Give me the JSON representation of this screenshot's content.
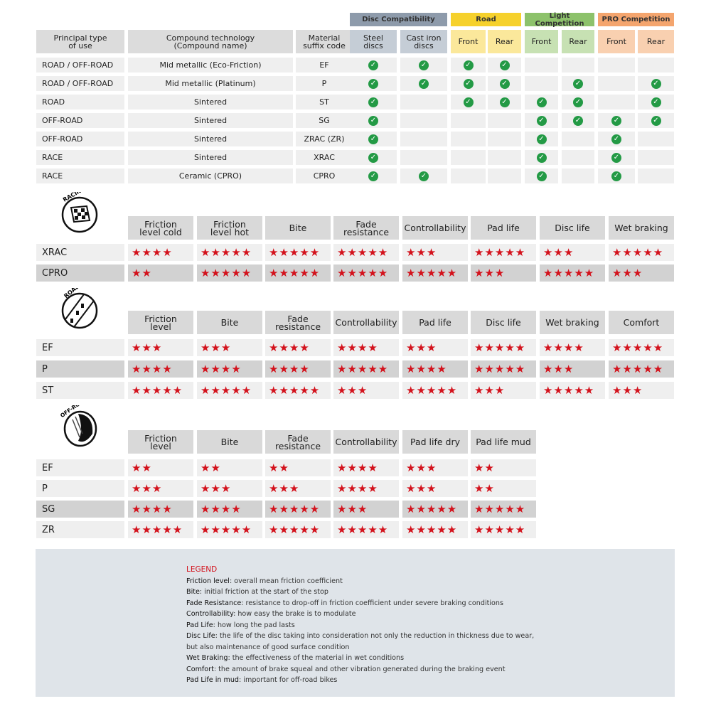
{
  "compat": {
    "groups": [
      {
        "label": "Disc Compatibility",
        "color": "#8e9bab",
        "sub": "#c5cdd6"
      },
      {
        "label": "Road",
        "color": "#f6d12c",
        "sub": "#fbe89b"
      },
      {
        "label": "Light Competition",
        "color": "#8dc26b",
        "sub": "#c7e1b3"
      },
      {
        "label": "PRO Competition",
        "color": "#f4a56e",
        "sub": "#f9d0b0"
      }
    ],
    "headers": [
      "Principal type\nof use",
      "Compound technology\n(Compound name)",
      "Material\nsuffix code",
      "Steel\ndiscs",
      "Cast iron\ndiscs",
      "Front",
      "Rear",
      "Front",
      "Rear",
      "Front",
      "Rear"
    ],
    "rows": [
      {
        "type": "ROAD / OFF-ROAD",
        "compound": "Mid metallic (Eco-Friction)",
        "code": "EF",
        "checks": [
          1,
          1,
          1,
          1,
          0,
          0,
          0,
          0
        ]
      },
      {
        "type": "ROAD / OFF-ROAD",
        "compound": "Mid metallic (Platinum)",
        "code": "P",
        "checks": [
          1,
          1,
          1,
          1,
          0,
          1,
          0,
          1
        ]
      },
      {
        "type": "ROAD",
        "compound": "Sintered",
        "code": "ST",
        "checks": [
          1,
          0,
          1,
          1,
          1,
          1,
          0,
          1
        ]
      },
      {
        "type": "OFF-ROAD",
        "compound": "Sintered",
        "code": "SG",
        "checks": [
          1,
          0,
          0,
          0,
          1,
          1,
          1,
          1
        ]
      },
      {
        "type": "OFF-ROAD",
        "compound": "Sintered",
        "code": "ZRAC (ZR)",
        "checks": [
          1,
          0,
          0,
          0,
          1,
          0,
          1,
          0
        ]
      },
      {
        "type": "RACE",
        "compound": "Sintered",
        "code": "XRAC",
        "checks": [
          1,
          0,
          0,
          0,
          1,
          0,
          1,
          0
        ]
      },
      {
        "type": "RACE",
        "compound": "Ceramic (CPRO)",
        "code": "CPRO",
        "checks": [
          1,
          1,
          0,
          0,
          1,
          0,
          1,
          0
        ]
      }
    ],
    "check_icon": "check-circle-icon",
    "check_color": "#239a45"
  },
  "ratings": [
    {
      "icon_label": "RACING",
      "icon": "checkered-flag-icon",
      "headers": [
        "Friction\nlevel cold",
        "Friction\nlevel hot",
        "Bite",
        "Fade\nresistance",
        "Controllability",
        "Pad life",
        "Disc life",
        "Wet braking"
      ],
      "rows": [
        {
          "label": "XRAC",
          "stars": [
            4,
            5,
            5,
            5,
            3,
            5,
            3,
            5
          ]
        },
        {
          "label": "CPRO",
          "stars": [
            2,
            5,
            5,
            5,
            5,
            3,
            5,
            3
          ],
          "dark": true
        }
      ]
    },
    {
      "icon_label": "ROAD",
      "icon": "road-icon",
      "headers": [
        "Friction\nlevel",
        "Bite",
        "Fade\nresistance",
        "Controllability",
        "Pad life",
        "Disc life",
        "Wet braking",
        "Comfort"
      ],
      "rows": [
        {
          "label": "EF",
          "stars": [
            3,
            3,
            4,
            4,
            3,
            5,
            4,
            5
          ]
        },
        {
          "label": "P",
          "stars": [
            4,
            4,
            4,
            5,
            4,
            5,
            3,
            5
          ],
          "dark": true
        },
        {
          "label": "ST",
          "stars": [
            5,
            5,
            5,
            3,
            5,
            3,
            5,
            3
          ]
        }
      ]
    },
    {
      "icon_label": "OFF-ROAD",
      "icon": "off-road-icon",
      "headers": [
        "Friction\nlevel",
        "Bite",
        "Fade\nresistance",
        "Controllability",
        "Pad life dry",
        "Pad life mud"
      ],
      "rows": [
        {
          "label": "EF",
          "stars": [
            2,
            2,
            2,
            4,
            3,
            2
          ]
        },
        {
          "label": "P",
          "stars": [
            3,
            3,
            3,
            4,
            3,
            2
          ]
        },
        {
          "label": "SG",
          "stars": [
            4,
            4,
            5,
            3,
            5,
            5
          ],
          "dark": true
        },
        {
          "label": "ZR",
          "stars": [
            5,
            5,
            5,
            5,
            5,
            5
          ]
        }
      ]
    }
  ],
  "star_color": "#d3121c",
  "legend": {
    "title": "LEGEND",
    "items": [
      {
        "term": "Friction level",
        "def": ": overall mean friction coefficient"
      },
      {
        "term": "Bite",
        "def": ": initial friction at the start of the stop"
      },
      {
        "term": "Fade Resistance",
        "def": ": resistance to drop-off in friction coefficient under severe braking conditions"
      },
      {
        "term": "Controllability",
        "def": ": how easy the brake is to modulate"
      },
      {
        "term": "Pad Life",
        "def": ": how long the pad lasts"
      },
      {
        "term": "Disc Life",
        "def": ": the life of the disc taking into consideration not only the reduction in thickness due to wear,"
      },
      {
        "term": "",
        "def": "but also maintenance of good surface condition"
      },
      {
        "term": "Wet Braking",
        "def": ": the effectiveness of the material in wet conditions"
      },
      {
        "term": "Comfort",
        "def": ": the amount of brake squeal and other vibration generated during the braking event"
      },
      {
        "term": "Pad Life in mud",
        "def": ": important for off-road bikes"
      }
    ]
  }
}
